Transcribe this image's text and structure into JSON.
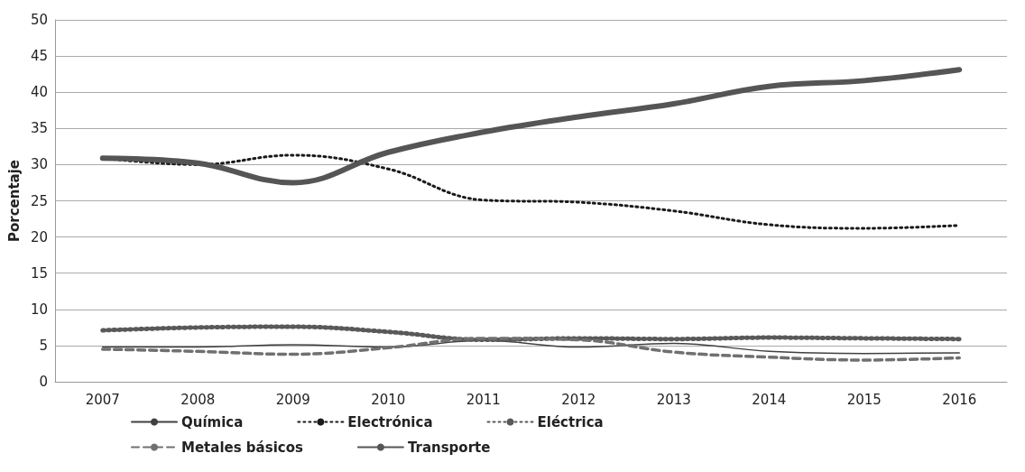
{
  "chart_data": {
    "type": "line",
    "ylabel": "Porcentaje",
    "categories": [
      "2007",
      "2008",
      "2009",
      "2010",
      "2011",
      "2012",
      "2013",
      "2014",
      "2015",
      "2016"
    ],
    "series": [
      {
        "name": "Química",
        "color": "#404040",
        "line_style": "solid",
        "values": [
          4.8,
          4.8,
          5.1,
          4.8,
          5.7,
          4.8,
          5.3,
          4.2,
          3.9,
          4.0
        ]
      },
      {
        "name": "Electrónica",
        "color": "#1a1a1a",
        "line_style": "dotted",
        "values": [
          30.9,
          30.0,
          31.3,
          29.4,
          25.1,
          24.8,
          23.6,
          21.7,
          21.2,
          21.6
        ]
      },
      {
        "name": "Eléctrica",
        "color": "#595959",
        "line_style": "dotted",
        "values": [
          7.1,
          7.5,
          7.6,
          6.9,
          5.8,
          6.0,
          5.9,
          6.1,
          6.0,
          5.9
        ]
      },
      {
        "name": "Metales básicos",
        "color": "#707070",
        "line_style": "dashed",
        "values": [
          4.5,
          4.2,
          3.8,
          4.7,
          6.0,
          5.8,
          4.1,
          3.4,
          3.0,
          3.3
        ]
      },
      {
        "name": "Transporte",
        "color": "#555555",
        "line_style": "solid",
        "values": [
          30.9,
          30.2,
          27.5,
          31.7,
          34.5,
          36.6,
          38.4,
          40.8,
          41.6,
          43.1
        ]
      }
    ],
    "ylim": [
      0,
      50
    ],
    "yticks": [
      0,
      5,
      10,
      15,
      20,
      25,
      30,
      35,
      40,
      45,
      50
    ],
    "grid": "y",
    "legend": "bottom",
    "marker": "none"
  }
}
